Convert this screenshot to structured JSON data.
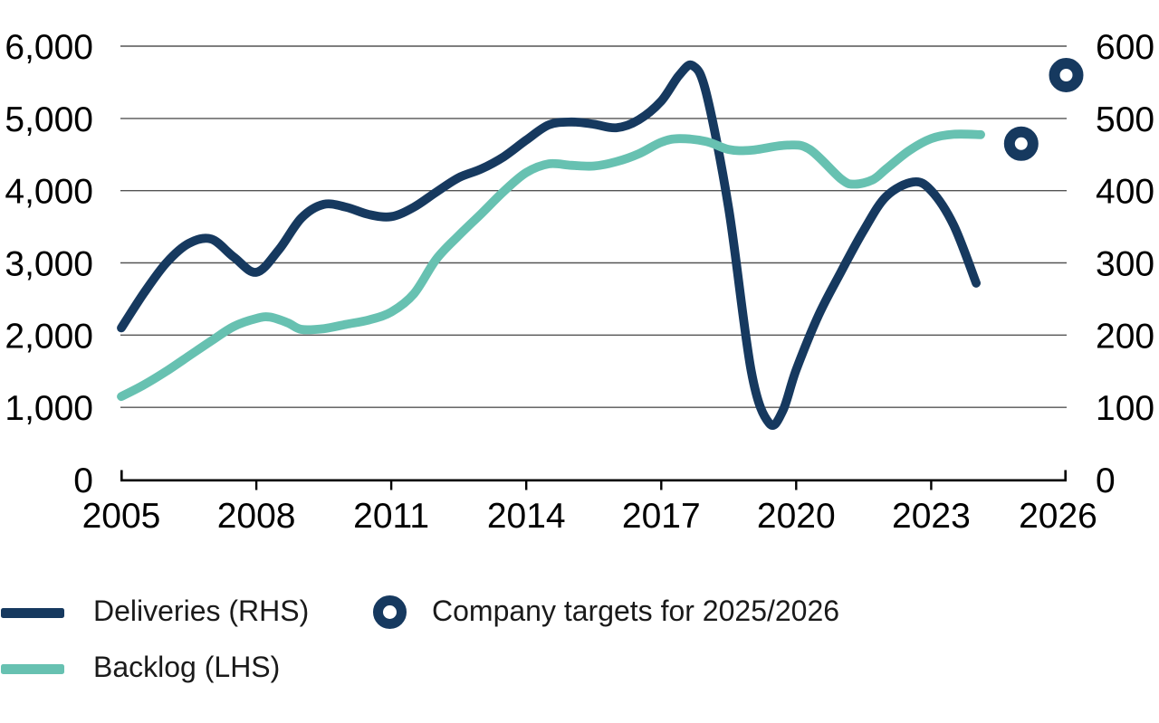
{
  "colors": {
    "deliveries": "#16395F",
    "backlog": "#67C1B1",
    "grid": "#545454",
    "axis": "#000000",
    "legend_text": "#1a1a1a"
  },
  "legend": {
    "items": [
      {
        "label": "Deliveries (RHS)",
        "marker": "line",
        "color": "#16395F"
      },
      {
        "label": "Backlog (LHS)",
        "marker": "line",
        "color": "#67C1B1"
      },
      {
        "label": "Company targets for 2025/2026",
        "marker": "ring",
        "color": "#16395F"
      }
    ]
  },
  "chart_data": {
    "type": "line",
    "title": "",
    "xlabel": "",
    "ylabel_left": "",
    "ylabel_right": "",
    "grid": true,
    "legend_position": "bottom-left",
    "x_range": [
      2005,
      2026
    ],
    "x_tick_years": [
      2005,
      2008,
      2011,
      2014,
      2017,
      2020,
      2023,
      2026
    ],
    "x_tick_labels": [
      "2005",
      "2008",
      "2011",
      "2014",
      "2017",
      "2020",
      "2023",
      "2026"
    ],
    "left_axis": {
      "range": [
        0,
        6000
      ],
      "tick_values": [
        0,
        1000,
        2000,
        3000,
        4000,
        5000,
        6000
      ],
      "tick_labels": [
        "0",
        "1,000",
        "2,000",
        "3,000",
        "4,000",
        "5,000",
        "6,000"
      ]
    },
    "right_axis": {
      "range": [
        0,
        600
      ],
      "tick_values": [
        0,
        100,
        200,
        300,
        400,
        500,
        600
      ],
      "tick_labels": [
        "0",
        "100",
        "200",
        "300",
        "400",
        "500",
        "600"
      ]
    },
    "series": [
      {
        "name": "Deliveries (RHS)",
        "axis": "right",
        "style": "smooth-line",
        "color": "#16395F",
        "points": [
          [
            2005,
            210
          ],
          [
            2005.5,
            258
          ],
          [
            2006,
            300
          ],
          [
            2006.5,
            327
          ],
          [
            2007,
            333
          ],
          [
            2007.5,
            308
          ],
          [
            2008,
            287
          ],
          [
            2008.5,
            318
          ],
          [
            2009,
            362
          ],
          [
            2009.5,
            381
          ],
          [
            2010,
            377
          ],
          [
            2010.5,
            367
          ],
          [
            2011,
            364
          ],
          [
            2011.5,
            377
          ],
          [
            2012,
            398
          ],
          [
            2012.5,
            418
          ],
          [
            2013,
            430
          ],
          [
            2013.5,
            447
          ],
          [
            2014,
            470
          ],
          [
            2014.5,
            491
          ],
          [
            2015,
            495
          ],
          [
            2015.5,
            492
          ],
          [
            2016,
            487
          ],
          [
            2016.5,
            498
          ],
          [
            2017,
            524
          ],
          [
            2017.4,
            560
          ],
          [
            2017.7,
            573
          ],
          [
            2018,
            535
          ],
          [
            2018.5,
            375
          ],
          [
            2019,
            150
          ],
          [
            2019.4,
            78
          ],
          [
            2019.7,
            95
          ],
          [
            2020,
            152
          ],
          [
            2020.5,
            228
          ],
          [
            2021,
            288
          ],
          [
            2021.5,
            345
          ],
          [
            2022,
            392
          ],
          [
            2022.6,
            412
          ],
          [
            2023,
            400
          ],
          [
            2023.5,
            352
          ],
          [
            2024,
            272
          ]
        ]
      },
      {
        "name": "Backlog (LHS)",
        "axis": "left",
        "style": "smooth-line",
        "color": "#67C1B1",
        "points": [
          [
            2005,
            1150
          ],
          [
            2005.5,
            1310
          ],
          [
            2006,
            1500
          ],
          [
            2006.5,
            1710
          ],
          [
            2007,
            1920
          ],
          [
            2007.5,
            2120
          ],
          [
            2008,
            2230
          ],
          [
            2008.3,
            2250
          ],
          [
            2008.7,
            2170
          ],
          [
            2009,
            2080
          ],
          [
            2009.5,
            2090
          ],
          [
            2010,
            2150
          ],
          [
            2010.5,
            2210
          ],
          [
            2011,
            2320
          ],
          [
            2011.5,
            2570
          ],
          [
            2012,
            3050
          ],
          [
            2012.5,
            3380
          ],
          [
            2013,
            3680
          ],
          [
            2013.5,
            3990
          ],
          [
            2014,
            4250
          ],
          [
            2014.5,
            4370
          ],
          [
            2015,
            4350
          ],
          [
            2015.5,
            4340
          ],
          [
            2016,
            4400
          ],
          [
            2016.5,
            4510
          ],
          [
            2017,
            4670
          ],
          [
            2017.4,
            4720
          ],
          [
            2018,
            4680
          ],
          [
            2018.5,
            4570
          ],
          [
            2019,
            4560
          ],
          [
            2019.8,
            4630
          ],
          [
            2020.3,
            4570
          ],
          [
            2021,
            4160
          ],
          [
            2021.3,
            4090
          ],
          [
            2021.7,
            4150
          ],
          [
            2022,
            4300
          ],
          [
            2022.5,
            4550
          ],
          [
            2023,
            4720
          ],
          [
            2023.5,
            4780
          ],
          [
            2024.1,
            4775
          ]
        ]
      },
      {
        "name": "Company targets for 2025/2026",
        "axis": "right",
        "style": "ring-marker",
        "color": "#16395F",
        "points": [
          [
            2025,
            465
          ],
          [
            2026,
            560
          ]
        ]
      }
    ]
  }
}
